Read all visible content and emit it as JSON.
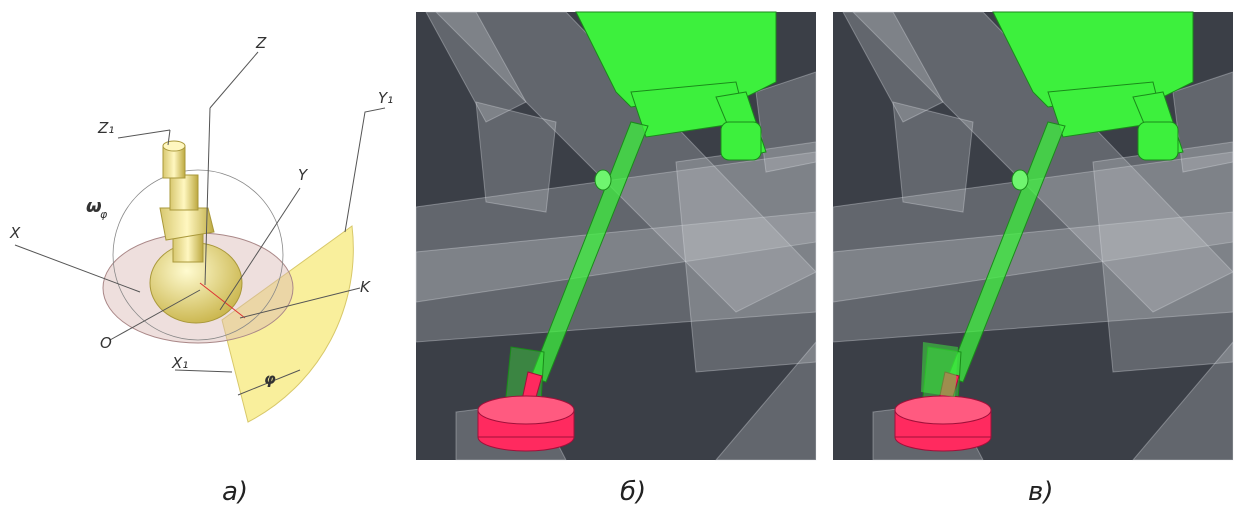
{
  "labels": {
    "z": "Z",
    "z1": "Z₁",
    "y1": "Y₁",
    "y": "Y",
    "x": "X",
    "omega": "ω",
    "omega_sub": "φ",
    "k": "K",
    "o": "O",
    "x1": "X₁",
    "phi": "φ"
  },
  "captions": [
    "а)",
    "б)",
    "в)"
  ]
}
